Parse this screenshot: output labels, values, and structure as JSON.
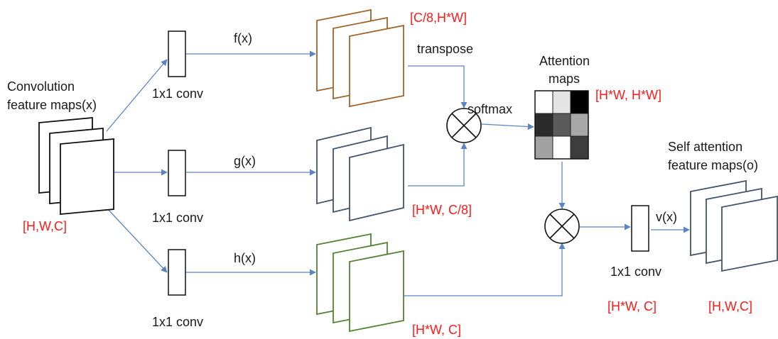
{
  "input": {
    "label_line1": "Convolution",
    "label_line2": "feature maps(x)",
    "dims": "[H,W,C]"
  },
  "branches": [
    {
      "func": "f(x)",
      "conv": "1x1 conv",
      "dims": "[C/8,H*W]",
      "color": "#a0652c"
    },
    {
      "func": "g(x)",
      "conv": "1x1 conv",
      "dims": "[H*W, C/8]",
      "color": "#44546a"
    },
    {
      "func": "h(x)",
      "conv": "1x1 conv",
      "dims": "[H*W, C]",
      "color": "#548235"
    }
  ],
  "transpose_label": "transpose",
  "softmax_label": "softmax",
  "attention": {
    "label_line1": "Attention",
    "label_line2": "maps",
    "dims": "[H*W, H*W]",
    "cells": [
      [
        "#ffffff",
        "#e4e4e4",
        "#000000"
      ],
      [
        "#2b2b2b",
        "#5a5a5a",
        "#a8a8a8"
      ],
      [
        "#a2a2a2",
        "#ffffff",
        "#3d3d3d"
      ]
    ]
  },
  "output": {
    "func": "v(x)",
    "conv": "1x1 conv",
    "conv_dims": "[H*W, C]",
    "label_line1": "Self attention",
    "label_line2": "feature maps(o)",
    "dims": "[H,W,C]",
    "color": "#44546a"
  },
  "colors": {
    "arrow": "#5b84c4",
    "dims_text": "#ff1a1a",
    "input_stack": "#111111"
  }
}
